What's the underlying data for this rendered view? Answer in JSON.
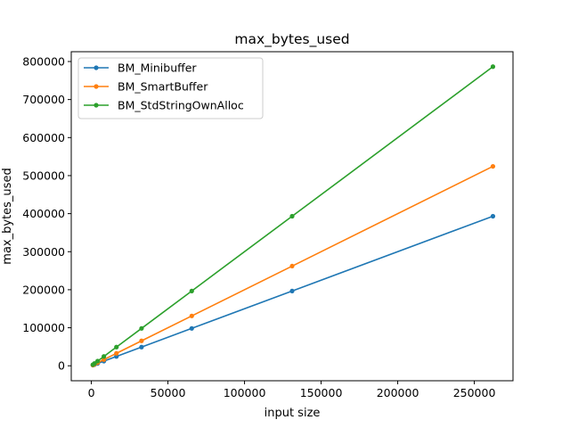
{
  "chart_data": {
    "type": "line",
    "title": "max_bytes_used",
    "xlabel": "input size",
    "ylabel": "max_bytes_used",
    "xlim": [
      -13107,
      275251
    ],
    "ylim": [
      -39322,
      825754
    ],
    "xticks": [
      0,
      50000,
      100000,
      150000,
      200000,
      250000
    ],
    "yticks": [
      0,
      100000,
      200000,
      300000,
      400000,
      500000,
      600000,
      700000,
      800000
    ],
    "grid": false,
    "legend_position": "upper-left",
    "x": [
      1024,
      2048,
      4096,
      8192,
      16384,
      32768,
      65536,
      131072,
      262144
    ],
    "series": [
      {
        "name": "BM_Minibuffer",
        "color": "#1f77b4",
        "values": [
          1536,
          3072,
          6144,
          12288,
          24576,
          49152,
          98304,
          196608,
          393216
        ]
      },
      {
        "name": "BM_SmartBuffer",
        "color": "#ff7f0e",
        "values": [
          2048,
          4096,
          8192,
          16384,
          32768,
          65536,
          131072,
          262144,
          524288
        ]
      },
      {
        "name": "BM_StdStringOwnAlloc",
        "color": "#2ca02c",
        "values": [
          3072,
          6144,
          12288,
          24576,
          49152,
          98304,
          196608,
          393216,
          786432
        ]
      }
    ]
  }
}
